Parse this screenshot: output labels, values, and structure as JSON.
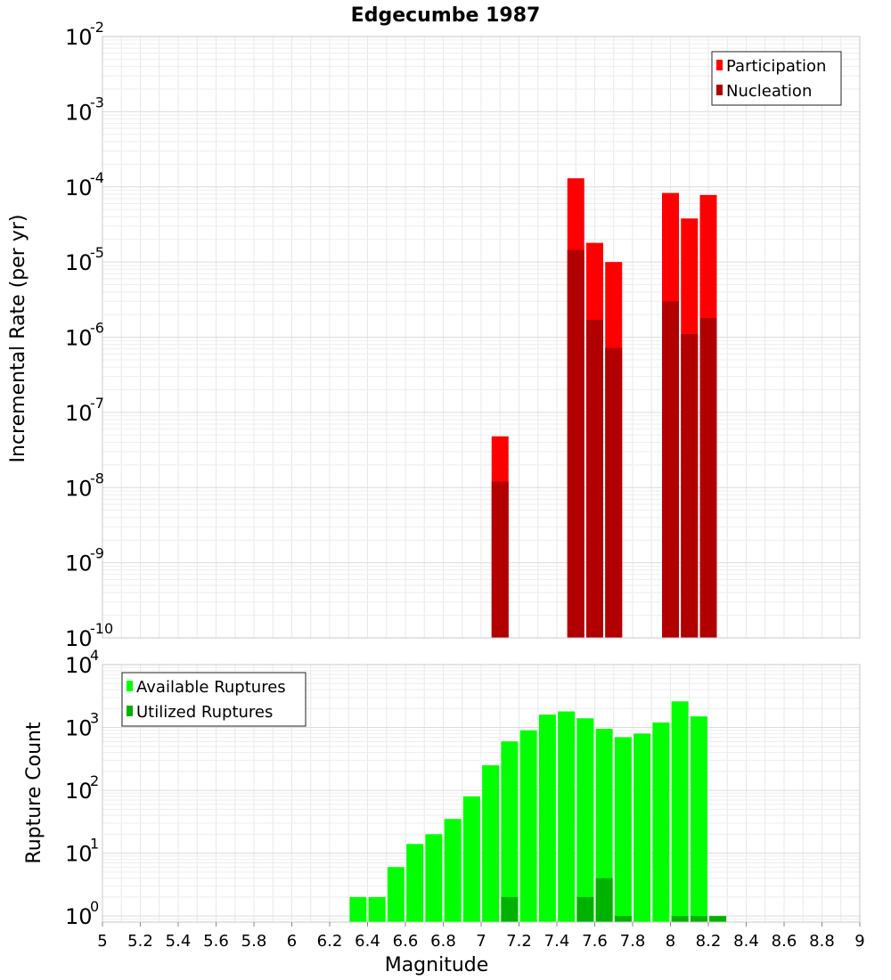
{
  "chart_data": [
    {
      "type": "bar",
      "title": "Edgecumbe 1987",
      "ylabel": "Incremental Rate (per yr)",
      "xlabel": "",
      "y_scale": "log",
      "ylim": [
        1e-10,
        0.01
      ],
      "xlim": [
        5,
        9
      ],
      "grid": true,
      "legend_position": "top-right",
      "bar_mode": "overlay",
      "colors": {
        "Participation": "#ff0000",
        "Nucleation": "#b20000"
      },
      "series": [
        {
          "name": "Participation",
          "x": [
            7.1,
            7.5,
            7.6,
            7.7,
            8.0,
            8.1,
            8.2
          ],
          "values": [
            4.8e-08,
            0.00013,
            1.8e-05,
            1e-05,
            8.3e-05,
            3.8e-05,
            7.8e-05
          ]
        },
        {
          "name": "Nucleation",
          "x": [
            7.1,
            7.5,
            7.6,
            7.7,
            8.0,
            8.1,
            8.2
          ],
          "values": [
            1.2e-08,
            1.45e-05,
            1.7e-06,
            7.2e-07,
            3e-06,
            1.1e-06,
            1.8e-06
          ]
        }
      ]
    },
    {
      "type": "bar",
      "title": "",
      "ylabel": "Rupture Count",
      "xlabel": "Magnitude",
      "y_scale": "log",
      "ylim": [
        0.8,
        10000
      ],
      "xlim": [
        5,
        9
      ],
      "grid": true,
      "legend_position": "top-left",
      "bar_mode": "overlay",
      "colors": {
        "Available Ruptures": "#00ff00",
        "Utilized Ruptures": "#00b200"
      },
      "x_ticks": [
        "5",
        "5.2",
        "5.4",
        "5.6",
        "5.8",
        "6",
        "6.2",
        "6.4",
        "6.6",
        "6.8",
        "7",
        "7.2",
        "7.4",
        "7.6",
        "7.8",
        "8",
        "8.2",
        "8.4",
        "8.6",
        "8.8",
        "9"
      ],
      "series": [
        {
          "name": "Available Ruptures",
          "x": [
            6.35,
            6.45,
            6.55,
            6.65,
            6.75,
            6.85,
            6.95,
            7.05,
            7.15,
            7.25,
            7.35,
            7.45,
            7.55,
            7.65,
            7.75,
            7.85,
            7.95,
            8.05,
            8.15
          ],
          "values": [
            2,
            2,
            6,
            14,
            20,
            35,
            80,
            250,
            600,
            900,
            1600,
            1800,
            1400,
            950,
            700,
            800,
            1200,
            2600,
            1500
          ]
        },
        {
          "name": "Utilized Ruptures",
          "x": [
            7.15,
            7.55,
            7.65,
            7.75,
            8.05,
            8.15,
            8.25
          ],
          "values": [
            2,
            2,
            4,
            1,
            1,
            1,
            1
          ]
        }
      ]
    }
  ]
}
